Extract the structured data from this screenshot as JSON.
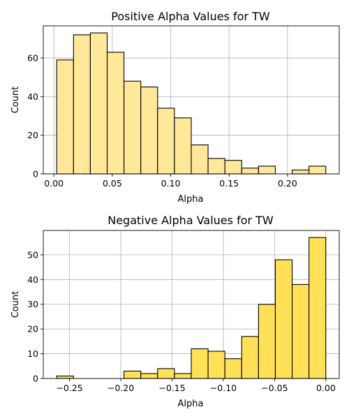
{
  "chart_data": [
    {
      "type": "bar",
      "title": "Positive Alpha Values for TW",
      "xlabel": "Alpha",
      "ylabel": "Count",
      "bin_edges": [
        0.0024,
        0.0168,
        0.0312,
        0.0456,
        0.06,
        0.0744,
        0.0888,
        0.1032,
        0.1176,
        0.132,
        0.1464,
        0.1608,
        0.1752,
        0.1896,
        0.204,
        0.2184,
        0.2328
      ],
      "counts": [
        59,
        72,
        73,
        63,
        48,
        45,
        34,
        29,
        15,
        8,
        7,
        3,
        4,
        0,
        2,
        4
      ],
      "xlim": [
        -0.0091,
        0.2443
      ],
      "ylim": [
        0,
        76.65
      ],
      "xticks": [
        0.0,
        0.05,
        0.1,
        0.15,
        0.2
      ],
      "xtick_labels": [
        "0.00",
        "0.05",
        "0.10",
        "0.15",
        "0.20"
      ],
      "yticks": [
        0,
        20,
        40,
        60
      ],
      "ytick_labels": [
        "0",
        "20",
        "40",
        "60"
      ],
      "color": "#ffe899",
      "grid": true
    },
    {
      "type": "bar",
      "title": "Negative Alpha Values for TW",
      "xlabel": "Alpha",
      "ylabel": "Count",
      "bin_edges": [
        -0.2625,
        -0.2461,
        -0.2297,
        -0.2133,
        -0.1969,
        -0.1805,
        -0.1641,
        -0.1477,
        -0.1313,
        -0.1149,
        -0.0985,
        -0.0821,
        -0.0657,
        -0.0493,
        -0.0329,
        -0.0165,
        -0.0001
      ],
      "counts": [
        1,
        0,
        0,
        0,
        3,
        2,
        4,
        2,
        12,
        11,
        8,
        17,
        30,
        48,
        38,
        57
      ],
      "xlim": [
        -0.2756,
        0.013
      ],
      "ylim": [
        0,
        59.85
      ],
      "xticks": [
        -0.25,
        -0.2,
        -0.15,
        -0.1,
        -0.05,
        0.0
      ],
      "xtick_labels": [
        "−0.25",
        "−0.20",
        "−0.15",
        "−0.10",
        "−0.05",
        "0.00"
      ],
      "yticks": [
        0,
        10,
        20,
        30,
        40,
        50
      ],
      "ytick_labels": [
        "0",
        "10",
        "20",
        "30",
        "40",
        "50"
      ],
      "color": "#ffe057",
      "grid": true
    }
  ]
}
